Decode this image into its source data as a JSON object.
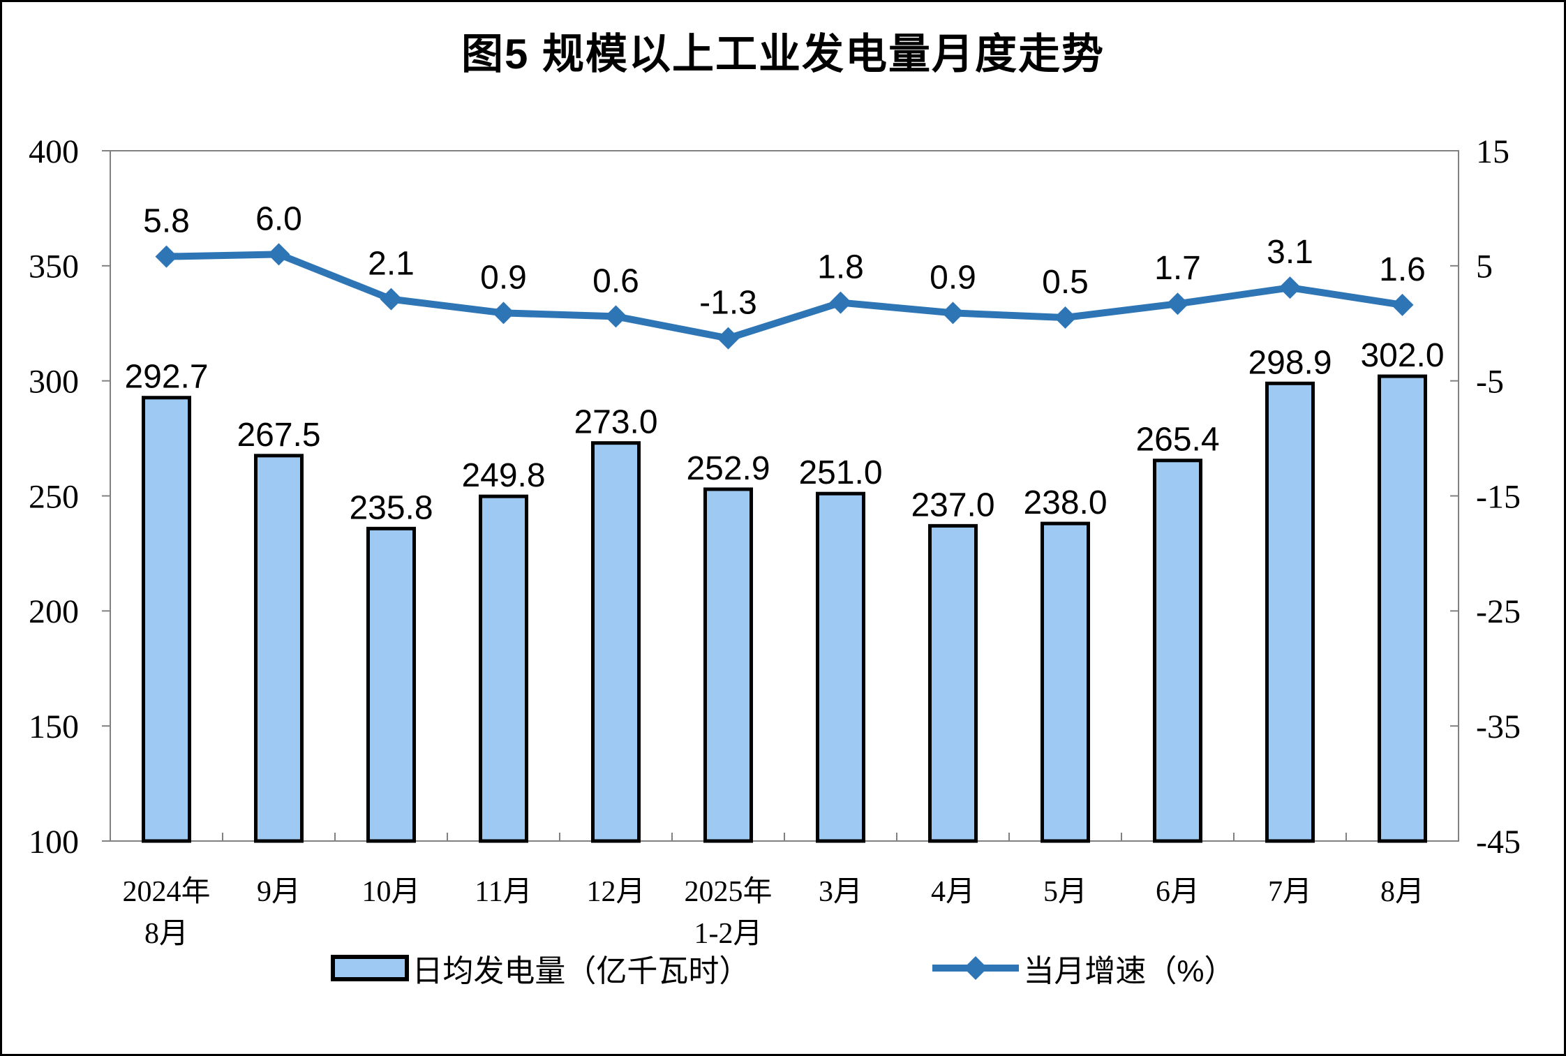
{
  "title": "图5 规模以上工业发电量月度走势",
  "colors": {
    "bar_fill": "#9DC9F2",
    "bar_border": "#000000",
    "line": "#2E75B6",
    "axis_line": "#808080",
    "text": "#000000",
    "frame_border": "#000000"
  },
  "chart_data": {
    "type": "bar",
    "subtype": "combo-bar-line-dual-axis",
    "title": "图5 规模以上工业发电量月度走势",
    "categories": [
      [
        "2024年",
        "8月"
      ],
      [
        "9月"
      ],
      [
        "10月"
      ],
      [
        "11月"
      ],
      [
        "12月"
      ],
      [
        "2025年",
        "1-2月"
      ],
      [
        "3月"
      ],
      [
        "4月"
      ],
      [
        "5月"
      ],
      [
        "6月"
      ],
      [
        "7月"
      ],
      [
        "8月"
      ]
    ],
    "series": [
      {
        "name": "日均发电量（亿千瓦时）",
        "type": "bar",
        "axis": "left",
        "values": [
          292.7,
          267.5,
          235.8,
          249.8,
          273.0,
          252.9,
          251.0,
          237.0,
          238.0,
          265.4,
          298.9,
          302.0
        ]
      },
      {
        "name": "当月增速（%）",
        "type": "line",
        "axis": "right",
        "values": [
          5.8,
          6.0,
          2.1,
          0.9,
          0.6,
          -1.3,
          1.8,
          0.9,
          0.5,
          1.7,
          3.1,
          1.6
        ]
      }
    ],
    "left_axis": {
      "min": 100,
      "max": 400,
      "ticks": [
        400,
        350,
        300,
        250,
        200,
        150,
        100
      ]
    },
    "right_axis": {
      "min": -45,
      "max": 15,
      "ticks": [
        15,
        5,
        -5,
        -15,
        -25,
        -35,
        -45
      ]
    },
    "grid": false,
    "legend_position": "bottom",
    "data_labels": true,
    "data_label_decimals": 1
  }
}
